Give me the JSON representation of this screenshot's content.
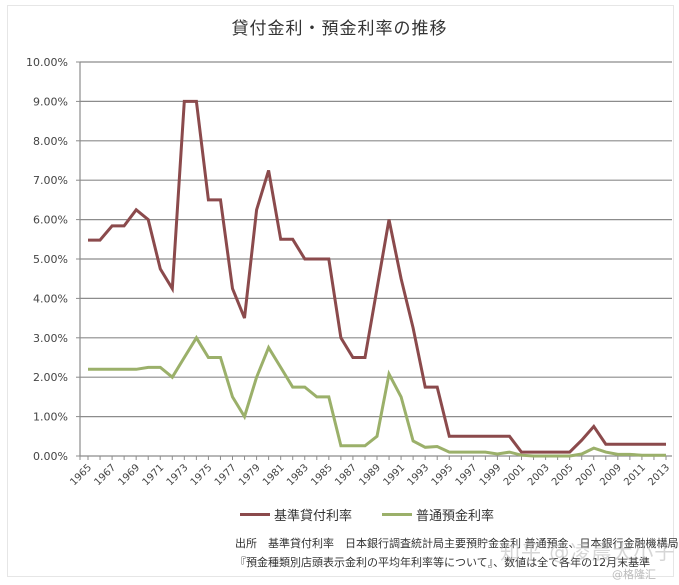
{
  "chart_data": {
    "type": "line",
    "title": "貸付金利・預金利率の推移",
    "xlabel": "",
    "ylabel": "",
    "ylim": [
      0,
      10
    ],
    "y_ticks": [
      "0.00%",
      "1.00%",
      "2.00%",
      "3.00%",
      "4.00%",
      "5.00%",
      "6.00%",
      "7.00%",
      "8.00%",
      "9.00%",
      "10.00%"
    ],
    "x_tick_labels": [
      "1965",
      "1967",
      "1969",
      "1971",
      "1973",
      "1975",
      "1977",
      "1979",
      "1981",
      "1983",
      "1985",
      "1987",
      "1989",
      "1991",
      "1993",
      "1995",
      "1997",
      "1999",
      "2001",
      "2003",
      "2005",
      "2007",
      "2009",
      "2011",
      "2013"
    ],
    "grid": true,
    "legend_position": "bottom",
    "x": [
      1965,
      1966,
      1967,
      1968,
      1969,
      1970,
      1971,
      1972,
      1973,
      1974,
      1975,
      1976,
      1977,
      1978,
      1979,
      1980,
      1981,
      1982,
      1983,
      1984,
      1985,
      1986,
      1987,
      1988,
      1989,
      1990,
      1991,
      1992,
      1993,
      1994,
      1995,
      1996,
      1997,
      1998,
      1999,
      2000,
      2001,
      2002,
      2003,
      2004,
      2005,
      2006,
      2007,
      2008,
      2009,
      2010,
      2011,
      2012,
      2013
    ],
    "series": [
      {
        "name": "基準貸付利率",
        "color": "#8b4a4c",
        "values": [
          5.48,
          5.48,
          5.84,
          5.84,
          6.25,
          6.0,
          4.75,
          4.25,
          9.0,
          9.0,
          6.5,
          6.5,
          4.25,
          3.5,
          6.25,
          7.25,
          5.5,
          5.5,
          5.0,
          5.0,
          5.0,
          3.0,
          2.5,
          2.5,
          4.25,
          6.0,
          4.5,
          3.25,
          1.75,
          1.75,
          0.5,
          0.5,
          0.5,
          0.5,
          0.5,
          0.5,
          0.1,
          0.1,
          0.1,
          0.1,
          0.1,
          0.4,
          0.75,
          0.3,
          0.3,
          0.3,
          0.3,
          0.3,
          0.3
        ]
      },
      {
        "name": "普通預金利率",
        "color": "#9bb06a",
        "values": [
          2.2,
          2.2,
          2.2,
          2.2,
          2.2,
          2.25,
          2.25,
          2.0,
          2.5,
          3.0,
          2.5,
          2.5,
          1.5,
          1.0,
          2.0,
          2.75,
          2.25,
          1.75,
          1.75,
          1.5,
          1.5,
          0.26,
          0.26,
          0.26,
          0.5,
          2.08,
          1.5,
          0.38,
          0.22,
          0.24,
          0.1,
          0.1,
          0.1,
          0.1,
          0.05,
          0.1,
          0.02,
          0.001,
          0.001,
          0.001,
          0.001,
          0.05,
          0.2,
          0.1,
          0.04,
          0.04,
          0.02,
          0.02,
          0.02
        ]
      }
    ]
  },
  "source": {
    "line1": "出所　基準貸付利率　日本銀行調査統計局主要預貯金金利 普通預金、日本銀行金融機構局",
    "line2": "『預金種類別店頭表示金利の平均年利率等について』、数値は全て各年の12月末基準"
  },
  "watermarks": {
    "zhihu": "知乎 @凌晨大小子",
    "glh": "@格隆汇"
  }
}
